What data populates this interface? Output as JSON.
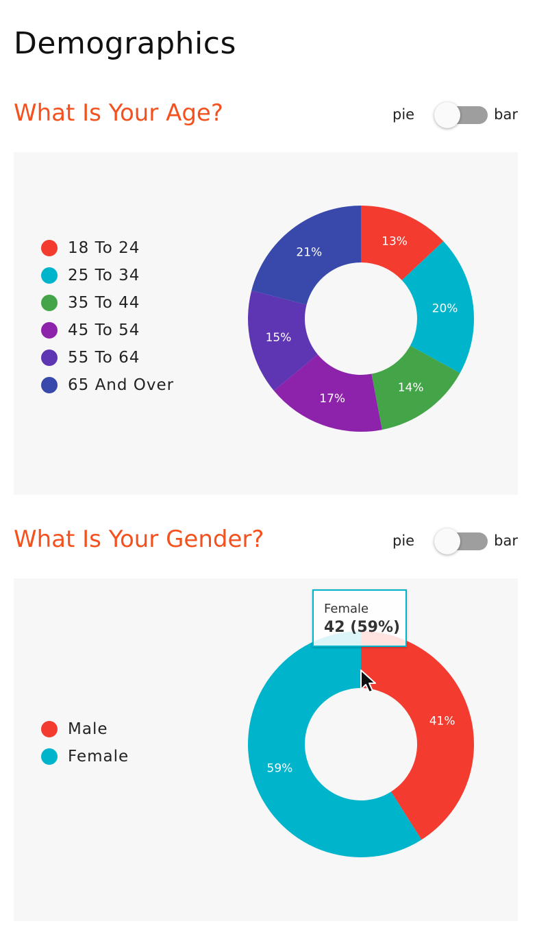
{
  "page": {
    "title": "Demographics"
  },
  "toggle_labels": {
    "left": "pie",
    "right": "bar"
  },
  "chart_data": [
    {
      "type": "pie",
      "title": "What Is Your Age?",
      "categories": [
        "18 To 24",
        "25 To 34",
        "35 To 44",
        "45 To 54",
        "55 To 64",
        "65 And Over"
      ],
      "values": [
        13,
        20,
        14,
        17,
        15,
        21
      ],
      "data_labels": [
        "13%",
        "20%",
        "14%",
        "17%",
        "15%",
        "21%"
      ],
      "colors": [
        "#f33b30",
        "#00b4cc",
        "#43a547",
        "#8e23ab",
        "#5e35b2",
        "#3949ab"
      ],
      "legend": "left",
      "donut": true
    },
    {
      "type": "pie",
      "title": "What Is Your Gender?",
      "categories": [
        "Male",
        "Female"
      ],
      "values": [
        41,
        59
      ],
      "data_labels": [
        "41%",
        "59%"
      ],
      "colors": [
        "#f33b30",
        "#00b4cc"
      ],
      "legend": "left",
      "donut": true,
      "tooltip": {
        "name": "Female",
        "value": "42 (59%)"
      }
    }
  ]
}
